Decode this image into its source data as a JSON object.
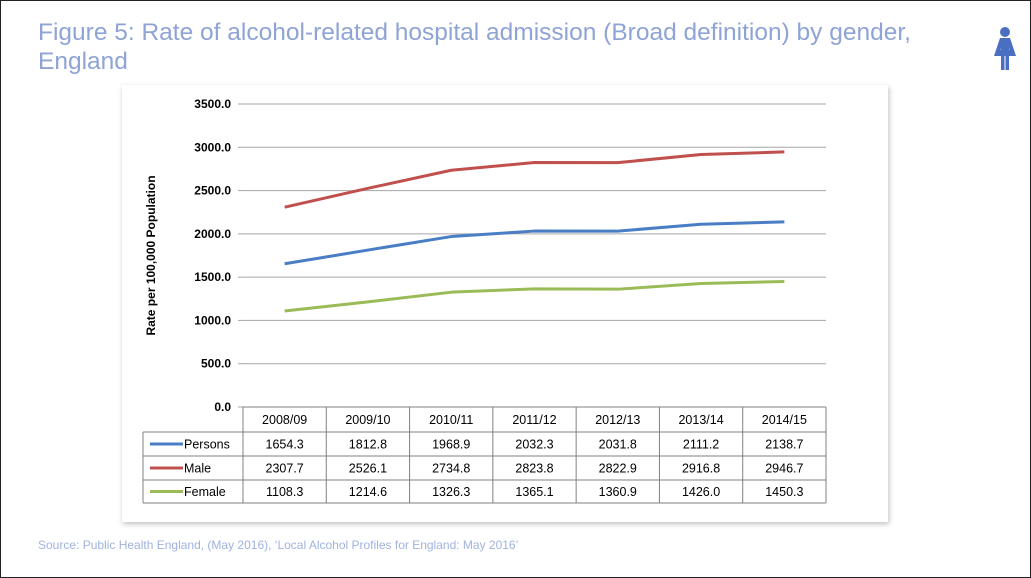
{
  "title": "Figure 5: Rate of alcohol-related hospital admission (Broad definition) by gender, England",
  "source": "Source: Public Health England, (May 2016), ‘Local Alcohol Profiles for England: May 2016’",
  "icon": "female-person-icon",
  "chart_data": {
    "type": "line",
    "ylabel": "Rate per 100,000 Population",
    "ylim": [
      0,
      3500
    ],
    "yticks": [
      "0.0",
      "500.0",
      "1000.0",
      "1500.0",
      "2000.0",
      "2500.0",
      "3000.0",
      "3500.0"
    ],
    "grid": true,
    "legend": "data-table",
    "categories": [
      "2008/09",
      "2009/10",
      "2010/11",
      "2011/12",
      "2012/13",
      "2013/14",
      "2014/15"
    ],
    "series": [
      {
        "name": "Persons",
        "color": "#4a7ec4",
        "values": [
          "1654.3",
          "1812.8",
          "1968.9",
          "2032.3",
          "2031.8",
          "2111.2",
          "2138.7"
        ]
      },
      {
        "name": "Male",
        "color": "#c0504d",
        "values": [
          "2307.7",
          "2526.1",
          "2734.8",
          "2823.8",
          "2822.9",
          "2916.8",
          "2946.7"
        ]
      },
      {
        "name": "Female",
        "color": "#9bbb59",
        "values": [
          "1108.3",
          "1214.6",
          "1326.3",
          "1365.1",
          "1360.9",
          "1426.0",
          "1450.3"
        ]
      }
    ]
  }
}
